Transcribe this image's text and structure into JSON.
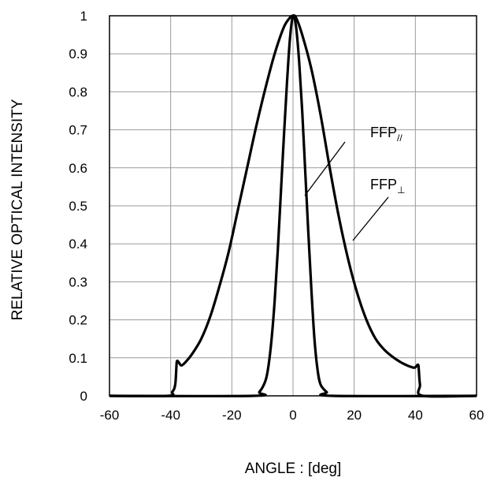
{
  "chart_data": {
    "type": "line",
    "xlabel": "ANGLE : [deg]",
    "ylabel": "RELATIVE OPTICAL INTENSITY",
    "xlim": [
      -60,
      60
    ],
    "ylim": [
      0,
      1
    ],
    "xticks": [
      -60,
      -40,
      -20,
      0,
      20,
      40,
      60
    ],
    "yticks": [
      0,
      0.1,
      0.2,
      0.3,
      0.4,
      0.5,
      0.6,
      0.7,
      0.8,
      0.9,
      1
    ],
    "ytick_labels": [
      "0",
      "0.1",
      "0.2",
      "0.3",
      "0.4",
      "0.5",
      "0.6",
      "0.7",
      "0.8",
      "0.9",
      "1"
    ],
    "grid": true,
    "legend": "none",
    "annotations": [
      {
        "text": "FFP",
        "subscript": "//",
        "series": 0
      },
      {
        "text": "FFP",
        "subscript": "⊥",
        "series": 1
      }
    ],
    "series": [
      {
        "x": [
          -60,
          -13,
          -11,
          -9,
          -8,
          -7,
          -6,
          -5,
          -4,
          -3,
          -2,
          -1,
          0,
          1,
          2,
          3,
          4,
          5,
          6,
          7,
          8,
          9,
          11,
          13,
          60
        ],
        "y": [
          0,
          0,
          0.01,
          0.04,
          0.08,
          0.15,
          0.25,
          0.38,
          0.53,
          0.68,
          0.82,
          0.94,
          1.0,
          0.97,
          0.88,
          0.75,
          0.59,
          0.43,
          0.28,
          0.15,
          0.07,
          0.03,
          0.01,
          0,
          0
        ]
      },
      {
        "x": [
          -60,
          -41,
          -39.5,
          -38.5,
          -38,
          -37.5,
          -36.5,
          -35,
          -33,
          -30,
          -27,
          -24,
          -21,
          -18,
          -15,
          -12,
          -9,
          -6,
          -3,
          -1,
          0,
          1,
          3,
          6,
          9,
          12,
          15,
          18,
          21,
          24,
          27,
          30,
          33,
          36,
          39,
          40,
          40.5,
          41,
          41.5,
          42.5,
          60
        ],
        "y": [
          0,
          0,
          0.01,
          0.03,
          0.09,
          0.09,
          0.08,
          0.09,
          0.11,
          0.15,
          0.21,
          0.29,
          0.38,
          0.49,
          0.6,
          0.71,
          0.81,
          0.9,
          0.97,
          0.995,
          1.0,
          0.995,
          0.95,
          0.86,
          0.74,
          0.6,
          0.47,
          0.36,
          0.27,
          0.2,
          0.15,
          0.12,
          0.1,
          0.085,
          0.075,
          0.075,
          0.08,
          0.08,
          0.03,
          0,
          0
        ]
      }
    ]
  }
}
